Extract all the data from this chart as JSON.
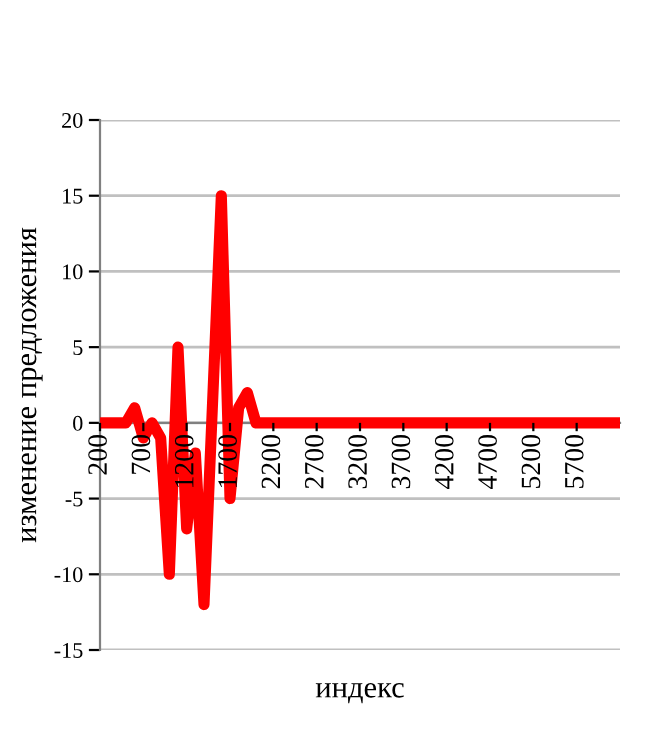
{
  "chart_data": {
    "type": "line",
    "xlabel": "индекс",
    "ylabel": "изменение предложения",
    "categories": [
      "200",
      null,
      null,
      null,
      null,
      "700",
      null,
      null,
      null,
      null,
      "1200",
      null,
      null,
      null,
      null,
      "1700",
      null,
      null,
      null,
      null,
      "2200",
      null,
      null,
      null,
      null,
      "2700",
      null,
      null,
      null,
      null,
      "3200",
      null,
      null,
      null,
      null,
      "3700",
      null,
      null,
      null,
      null,
      "4200",
      null,
      null,
      null,
      null,
      "4700",
      null,
      null,
      null,
      null,
      "5200",
      null,
      null,
      null,
      null,
      "5700",
      null,
      null,
      null,
      null,
      null
    ],
    "series": [
      {
        "color": "#ff0000",
        "values": [
          0,
          0,
          0,
          0,
          1,
          -1,
          0,
          -1,
          -10,
          5,
          -7,
          -2,
          -12,
          1.5,
          15,
          -5,
          1,
          2,
          0,
          0,
          0,
          0,
          0,
          0,
          0,
          0,
          0,
          0,
          0,
          0,
          0,
          0,
          0,
          0,
          0,
          0,
          0,
          0,
          0,
          0,
          0,
          0,
          0,
          0,
          0,
          0,
          0,
          0,
          0,
          0,
          0,
          0,
          0,
          0,
          0,
          0,
          0,
          0,
          0,
          0,
          0
        ]
      }
    ],
    "ylim": [
      -15,
      20
    ],
    "yticks": [
      -15,
      -10,
      -5,
      0,
      5,
      10,
      15,
      20
    ],
    "grid": "y",
    "legend": false,
    "marker": "none",
    "line_style": "solid"
  }
}
